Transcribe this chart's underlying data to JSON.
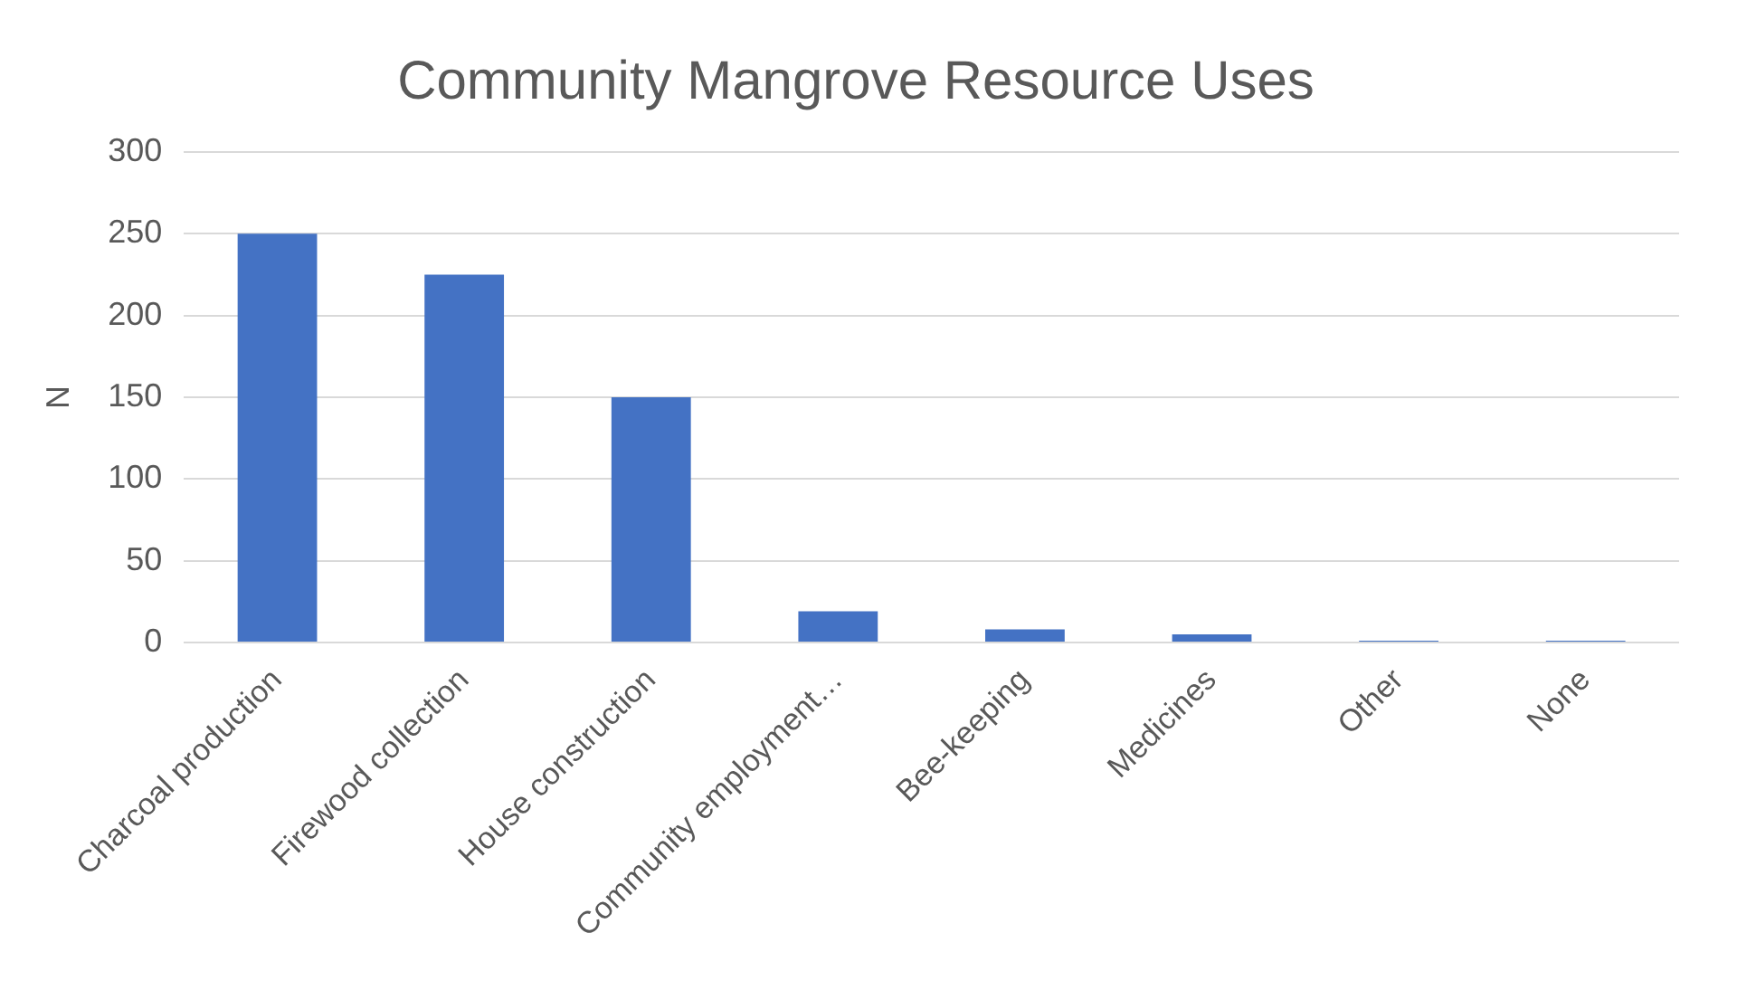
{
  "chart_data": {
    "type": "bar",
    "title": "Community Mangrove Resource Uses",
    "ylabel": "N",
    "categories": [
      "Charcoal production",
      "Firewood collection",
      "House construction",
      "Community employment…",
      "Bee-keeping",
      "Medicines",
      "Other",
      "None"
    ],
    "values": [
      250,
      225,
      150,
      19,
      8,
      5,
      1,
      1
    ],
    "color": "#4472c4",
    "ylim": [
      0,
      300
    ],
    "yticks": [
      0,
      50,
      100,
      150,
      200,
      250,
      300
    ],
    "grid": "y",
    "legend": false
  }
}
